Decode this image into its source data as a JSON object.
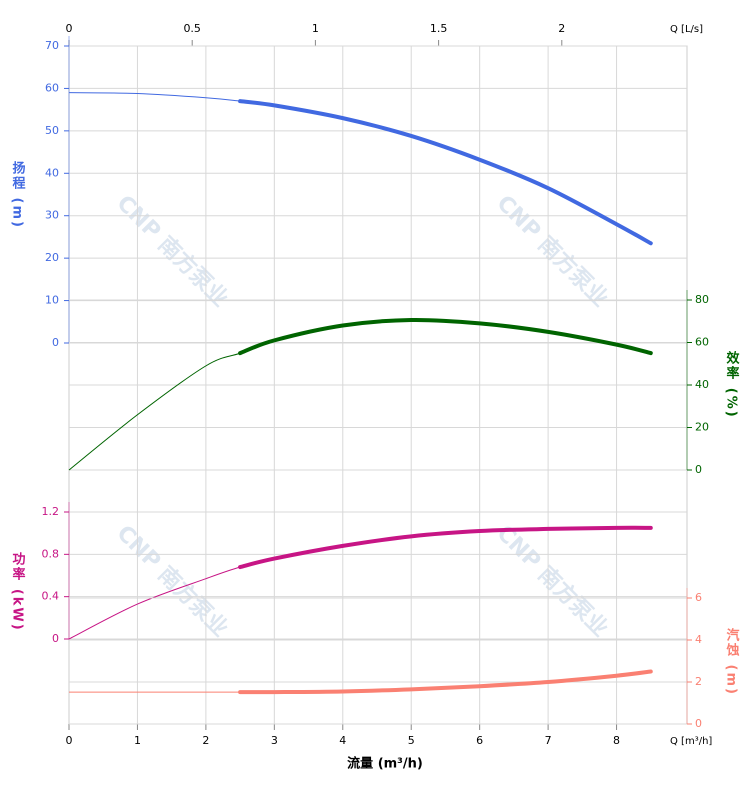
{
  "chart_data": {
    "type": "line",
    "xlabel": "流量 (m³/h)",
    "x_unit_label": "Q [m³/h]",
    "xlim": [
      0,
      9
    ],
    "xticks": [
      0,
      1,
      2,
      3,
      4,
      5,
      6,
      7,
      8
    ],
    "x2_unit_label": "Q [L/s]",
    "x2lim": [
      0,
      2.5
    ],
    "x2ticks": [
      0,
      0.5,
      1,
      1.5,
      2
    ],
    "grid": true,
    "watermark": "CNP 南方泵业",
    "operating_range": [
      2.5,
      8.5
    ],
    "x": [
      0,
      1,
      2,
      2.5,
      3,
      4,
      5,
      6,
      7,
      8,
      8.5
    ],
    "series": [
      {
        "name": "扬程 (m)",
        "color": "#4169e1",
        "side": "left",
        "ylim": [
          0,
          70
        ],
        "yticks": [
          0,
          10,
          20,
          30,
          40,
          50,
          60,
          70
        ],
        "values": [
          59,
          58.8,
          57.8,
          57,
          56,
          53,
          48.8,
          43.2,
          36.5,
          28,
          23.5
        ]
      },
      {
        "name": "效率 (%)",
        "color": "#006400",
        "side": "right",
        "ylim": [
          0,
          80
        ],
        "yticks": [
          0,
          20,
          40,
          60,
          80
        ],
        "values": [
          0,
          26,
          49,
          55,
          61,
          68,
          70.6,
          69,
          65,
          59,
          55
        ]
      },
      {
        "name": "功率 (kW)",
        "color": "#c71585",
        "side": "left",
        "ylim": [
          0,
          1.2
        ],
        "yticks": [
          0,
          0.4,
          0.8,
          1.2
        ],
        "values": [
          0,
          0.33,
          0.57,
          0.68,
          0.76,
          0.88,
          0.97,
          1.02,
          1.04,
          1.05,
          1.05
        ]
      },
      {
        "name": "汽蚀 (m)",
        "color": "#fa8072",
        "side": "right",
        "ylim": [
          0,
          6
        ],
        "yticks": [
          0,
          2,
          4,
          6
        ],
        "values": [
          1.52,
          1.52,
          1.52,
          1.52,
          1.52,
          1.55,
          1.65,
          1.8,
          2.0,
          2.3,
          2.5
        ]
      }
    ]
  }
}
